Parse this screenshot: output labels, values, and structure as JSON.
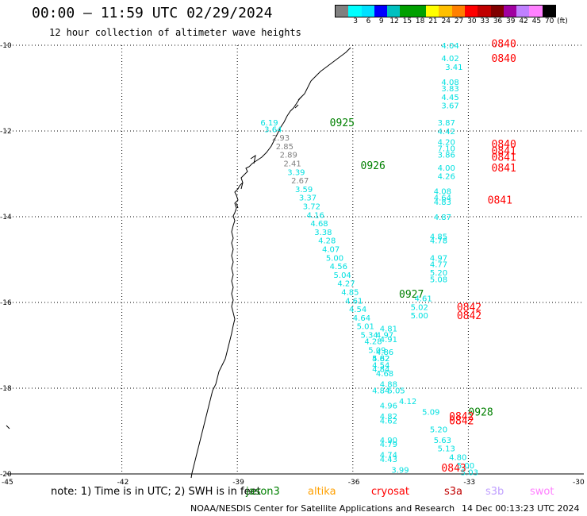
{
  "title": "00:00 – 11:59 UTC 02/29/2024",
  "subtitle": "12 hour collection of altimeter wave heights",
  "colorbar": {
    "colors": [
      "#808080",
      "#00ffff",
      "#00e0ff",
      "#0000ff",
      "#00c0c0",
      "#00a000",
      "#00a000",
      "#ffff00",
      "#ffc000",
      "#ff8000",
      "#ff0000",
      "#c00000",
      "#800000",
      "#a000a0",
      "#c080ff",
      "#ff80ff",
      "#000000"
    ],
    "labels": [
      "3",
      "6",
      "9",
      "12",
      "15",
      "18",
      "21",
      "24",
      "27",
      "30",
      "33",
      "36",
      "39",
      "42",
      "45",
      "70",
      "(ft)"
    ]
  },
  "axes": {
    "lat_labels": [
      "-10",
      "-12",
      "-14",
      "-16",
      "-18",
      "-20"
    ],
    "lon_labels": [
      "-45",
      "-42",
      "-39",
      "-36",
      "-33",
      "-30"
    ]
  },
  "time_labels": [
    {
      "text": "0840",
      "color": "#ff0000",
      "lon": -32.4,
      "lat": -9.95
    },
    {
      "text": "0840",
      "color": "#ff0000",
      "lon": -32.4,
      "lat": -10.3
    },
    {
      "text": "0925",
      "color": "#008000",
      "lon": -36.6,
      "lat": -11.8
    },
    {
      "text": "0840",
      "color": "#ff0000",
      "lon": -32.4,
      "lat": -12.3
    },
    {
      "text": "0841",
      "color": "#ff0000",
      "lon": -32.4,
      "lat": -12.45
    },
    {
      "text": "0841",
      "color": "#ff0000",
      "lon": -32.4,
      "lat": -12.6
    },
    {
      "text": "0926",
      "color": "#008000",
      "lon": -35.8,
      "lat": -12.8
    },
    {
      "text": "0841",
      "color": "#ff0000",
      "lon": -32.4,
      "lat": -12.85
    },
    {
      "text": "0841",
      "color": "#ff0000",
      "lon": -32.5,
      "lat": -13.6
    },
    {
      "text": "0927",
      "color": "#008000",
      "lon": -34.8,
      "lat": -15.8
    },
    {
      "text": "0842",
      "color": "#ff0000",
      "lon": -33.3,
      "lat": -16.1
    },
    {
      "text": "0842",
      "color": "#ff0000",
      "lon": -33.3,
      "lat": -16.3
    },
    {
      "text": "0928",
      "color": "#008000",
      "lon": -33.0,
      "lat": -18.55
    },
    {
      "text": "0842",
      "color": "#ff0000",
      "lon": -33.5,
      "lat": -18.65
    },
    {
      "text": "0842",
      "color": "#ff0000",
      "lon": -33.5,
      "lat": -18.75
    },
    {
      "text": "0843",
      "color": "#ff0000",
      "lon": -33.7,
      "lat": -19.85
    }
  ],
  "wave_heights": [
    {
      "text": "4.04",
      "color": "#00e0e0",
      "lon": -33.7,
      "lat": -10.0
    },
    {
      "text": "4.02",
      "color": "#00e0e0",
      "lon": -33.7,
      "lat": -10.3
    },
    {
      "text": "3.41",
      "color": "#00e0e0",
      "lon": -33.6,
      "lat": -10.5
    },
    {
      "text": "4.08",
      "color": "#00e0e0",
      "lon": -33.7,
      "lat": -10.85
    },
    {
      "text": "3.83",
      "color": "#00e0e0",
      "lon": -33.7,
      "lat": -11.0
    },
    {
      "text": "4.45",
      "color": "#00e0e0",
      "lon": -33.7,
      "lat": -11.2
    },
    {
      "text": "3.67",
      "color": "#00e0e0",
      "lon": -33.7,
      "lat": -11.4
    },
    {
      "text": "3.87",
      "color": "#00e0e0",
      "lon": -33.8,
      "lat": -11.8
    },
    {
      "text": "4.42",
      "color": "#00e0e0",
      "lon": -33.8,
      "lat": -12.0
    },
    {
      "text": "4.20",
      "color": "#00e0e0",
      "lon": -33.8,
      "lat": -12.25
    },
    {
      "text": "7.10",
      "color": "#00e0e0",
      "lon": -33.8,
      "lat": -12.4
    },
    {
      "text": "3.86",
      "color": "#00e0e0",
      "lon": -33.8,
      "lat": -12.55
    },
    {
      "text": "4.00",
      "color": "#00e0e0",
      "lon": -33.8,
      "lat": -12.85
    },
    {
      "text": "4.26",
      "color": "#00e0e0",
      "lon": -33.8,
      "lat": -13.05
    },
    {
      "text": "4.08",
      "color": "#00e0e0",
      "lon": -33.9,
      "lat": -13.4
    },
    {
      "text": "4.64",
      "color": "#00e0e0",
      "lon": -33.9,
      "lat": -13.55
    },
    {
      "text": "4.83",
      "color": "#00e0e0",
      "lon": -33.9,
      "lat": -13.65
    },
    {
      "text": "4.87",
      "color": "#00e0e0",
      "lon": -33.9,
      "lat": -14.0
    },
    {
      "text": "4.85",
      "color": "#00e0e0",
      "lon": -34.0,
      "lat": -14.45
    },
    {
      "text": "4.78",
      "color": "#00e0e0",
      "lon": -34.0,
      "lat": -14.55
    },
    {
      "text": "4.97",
      "color": "#00e0e0",
      "lon": -34.0,
      "lat": -14.95
    },
    {
      "text": "4.77",
      "color": "#00e0e0",
      "lon": -34.0,
      "lat": -15.1
    },
    {
      "text": "5.20",
      "color": "#00e0e0",
      "lon": -34.0,
      "lat": -15.3
    },
    {
      "text": "5.08",
      "color": "#00e0e0",
      "lon": -34.0,
      "lat": -15.45
    },
    {
      "text": "6.19",
      "color": "#00e0e0",
      "lon": -38.4,
      "lat": -11.8
    },
    {
      "text": "3.64",
      "color": "#00e0e0",
      "lon": -38.3,
      "lat": -11.95
    },
    {
      "text": "2.93",
      "color": "#808080",
      "lon": -38.1,
      "lat": -12.15
    },
    {
      "text": "2.85",
      "color": "#808080",
      "lon": -38.0,
      "lat": -12.35
    },
    {
      "text": "2.89",
      "color": "#808080",
      "lon": -37.9,
      "lat": -12.55
    },
    {
      "text": "2.41",
      "color": "#808080",
      "lon": -37.8,
      "lat": -12.75
    },
    {
      "text": "3.39",
      "color": "#00e0e0",
      "lon": -37.7,
      "lat": -12.95
    },
    {
      "text": "2.67",
      "color": "#808080",
      "lon": -37.6,
      "lat": -13.15
    },
    {
      "text": "3.59",
      "color": "#00e0e0",
      "lon": -37.5,
      "lat": -13.35
    },
    {
      "text": "3.37",
      "color": "#00e0e0",
      "lon": -37.4,
      "lat": -13.55
    },
    {
      "text": "3.72",
      "color": "#00e0e0",
      "lon": -37.3,
      "lat": -13.75
    },
    {
      "text": "4.16",
      "color": "#00e0e0",
      "lon": -37.2,
      "lat": -13.95
    },
    {
      "text": "4.68",
      "color": "#00e0e0",
      "lon": -37.1,
      "lat": -14.15
    },
    {
      "text": "3.38",
      "color": "#00e0e0",
      "lon": -37.0,
      "lat": -14.35
    },
    {
      "text": "4.28",
      "color": "#00e0e0",
      "lon": -36.9,
      "lat": -14.55
    },
    {
      "text": "4.07",
      "color": "#00e0e0",
      "lon": -36.8,
      "lat": -14.75
    },
    {
      "text": "5.00",
      "color": "#00e0e0",
      "lon": -36.7,
      "lat": -14.95
    },
    {
      "text": "4.56",
      "color": "#00e0e0",
      "lon": -36.6,
      "lat": -15.15
    },
    {
      "text": "5.04",
      "color": "#00e0e0",
      "lon": -36.5,
      "lat": -15.35
    },
    {
      "text": "4.27",
      "color": "#00e0e0",
      "lon": -36.4,
      "lat": -15.55
    },
    {
      "text": "4.85",
      "color": "#00e0e0",
      "lon": -36.3,
      "lat": -15.75
    },
    {
      "text": "4.61",
      "color": "#00e0e0",
      "lon": -36.2,
      "lat": -15.95
    },
    {
      "text": "4.54",
      "color": "#00e0e0",
      "lon": -36.1,
      "lat": -16.15
    },
    {
      "text": "4.64",
      "color": "#00e0e0",
      "lon": -36.0,
      "lat": -16.35
    },
    {
      "text": "4.61",
      "color": "#00e0e0",
      "lon": -34.4,
      "lat": -15.9
    },
    {
      "text": "5.02",
      "color": "#00e0e0",
      "lon": -34.5,
      "lat": -16.1
    },
    {
      "text": "5.00",
      "color": "#00e0e0",
      "lon": -34.5,
      "lat": -16.3
    },
    {
      "text": "5.01",
      "color": "#00e0e0",
      "lon": -35.9,
      "lat": -16.55
    },
    {
      "text": "4.81",
      "color": "#00e0e0",
      "lon": -35.3,
      "lat": -16.6
    },
    {
      "text": "5.34",
      "color": "#00e0e0",
      "lon": -35.8,
      "lat": -16.75
    },
    {
      "text": "4.97",
      "color": "#00e0e0",
      "lon": -35.4,
      "lat": -16.75
    },
    {
      "text": "4.91",
      "color": "#00e0e0",
      "lon": -35.3,
      "lat": -16.85
    },
    {
      "text": "4.28",
      "color": "#00e0e0",
      "lon": -35.7,
      "lat": -16.9
    },
    {
      "text": "5.09",
      "color": "#00e0e0",
      "lon": -35.6,
      "lat": -17.1
    },
    {
      "text": "4.86",
      "color": "#00e0e0",
      "lon": -35.4,
      "lat": -17.15
    },
    {
      "text": "5.62",
      "color": "#00e0e0",
      "lon": -35.5,
      "lat": -17.3
    },
    {
      "text": "4.82",
      "color": "#00e0e0",
      "lon": -35.5,
      "lat": -17.3
    },
    {
      "text": "4.54",
      "color": "#00e0e0",
      "lon": -35.5,
      "lat": -17.45
    },
    {
      "text": "4.84",
      "color": "#00e0e0",
      "lon": -35.5,
      "lat": -17.55
    },
    {
      "text": "4.68",
      "color": "#00e0e0",
      "lon": -35.4,
      "lat": -17.65
    },
    {
      "text": "4.88",
      "color": "#00e0e0",
      "lon": -35.3,
      "lat": -17.9
    },
    {
      "text": "4.84",
      "color": "#00e0e0",
      "lon": -35.5,
      "lat": -18.05
    },
    {
      "text": "5.05",
      "color": "#00e0e0",
      "lon": -35.1,
      "lat": -18.05
    },
    {
      "text": "4.96",
      "color": "#00e0e0",
      "lon": -35.3,
      "lat": -18.4
    },
    {
      "text": "4.12",
      "color": "#00e0e0",
      "lon": -34.8,
      "lat": -18.3
    },
    {
      "text": "5.09",
      "color": "#00e0e0",
      "lon": -34.2,
      "lat": -18.55
    },
    {
      "text": "4.82",
      "color": "#00e0e0",
      "lon": -35.3,
      "lat": -18.65
    },
    {
      "text": "4.62",
      "color": "#00e0e0",
      "lon": -35.3,
      "lat": -18.75
    },
    {
      "text": "5.20",
      "color": "#00e0e0",
      "lon": -34.0,
      "lat": -18.95
    },
    {
      "text": "4.90",
      "color": "#00e0e0",
      "lon": -35.3,
      "lat": -19.2
    },
    {
      "text": "4.79",
      "color": "#00e0e0",
      "lon": -35.3,
      "lat": -19.3
    },
    {
      "text": "5.63",
      "color": "#00e0e0",
      "lon": -33.9,
      "lat": -19.2
    },
    {
      "text": "5.13",
      "color": "#00e0e0",
      "lon": -33.8,
      "lat": -19.4
    },
    {
      "text": "4.74",
      "color": "#00e0e0",
      "lon": -35.3,
      "lat": -19.55
    },
    {
      "text": "4.43",
      "color": "#00e0e0",
      "lon": -35.3,
      "lat": -19.65
    },
    {
      "text": "4.80",
      "color": "#00e0e0",
      "lon": -33.5,
      "lat": -19.6
    },
    {
      "text": "5.00",
      "color": "#00e0e0",
      "lon": -33.3,
      "lat": -19.8
    },
    {
      "text": "3.99",
      "color": "#00e0e0",
      "lon": -35.0,
      "lat": -19.9
    },
    {
      "text": "5.03",
      "color": "#00e0e0",
      "lon": -33.2,
      "lat": -19.95
    }
  ],
  "note": "note: 1) Time is in UTC; 2) SWH is in feet",
  "satellites": [
    {
      "name": "jason3",
      "color": "#008000"
    },
    {
      "name": "altika",
      "color": "#ffa000"
    },
    {
      "name": "cryosat",
      "color": "#ff0000"
    },
    {
      "name": "s3a",
      "color": "#c00000"
    },
    {
      "name": "s3b",
      "color": "#c0a0ff"
    },
    {
      "name": "swot",
      "color": "#ff80ff"
    }
  ],
  "footer": "NOAA/NESDIS Center for Satellite Applications and Research",
  "footer_time": "14 Dec 00:13:23 UTC 2024"
}
